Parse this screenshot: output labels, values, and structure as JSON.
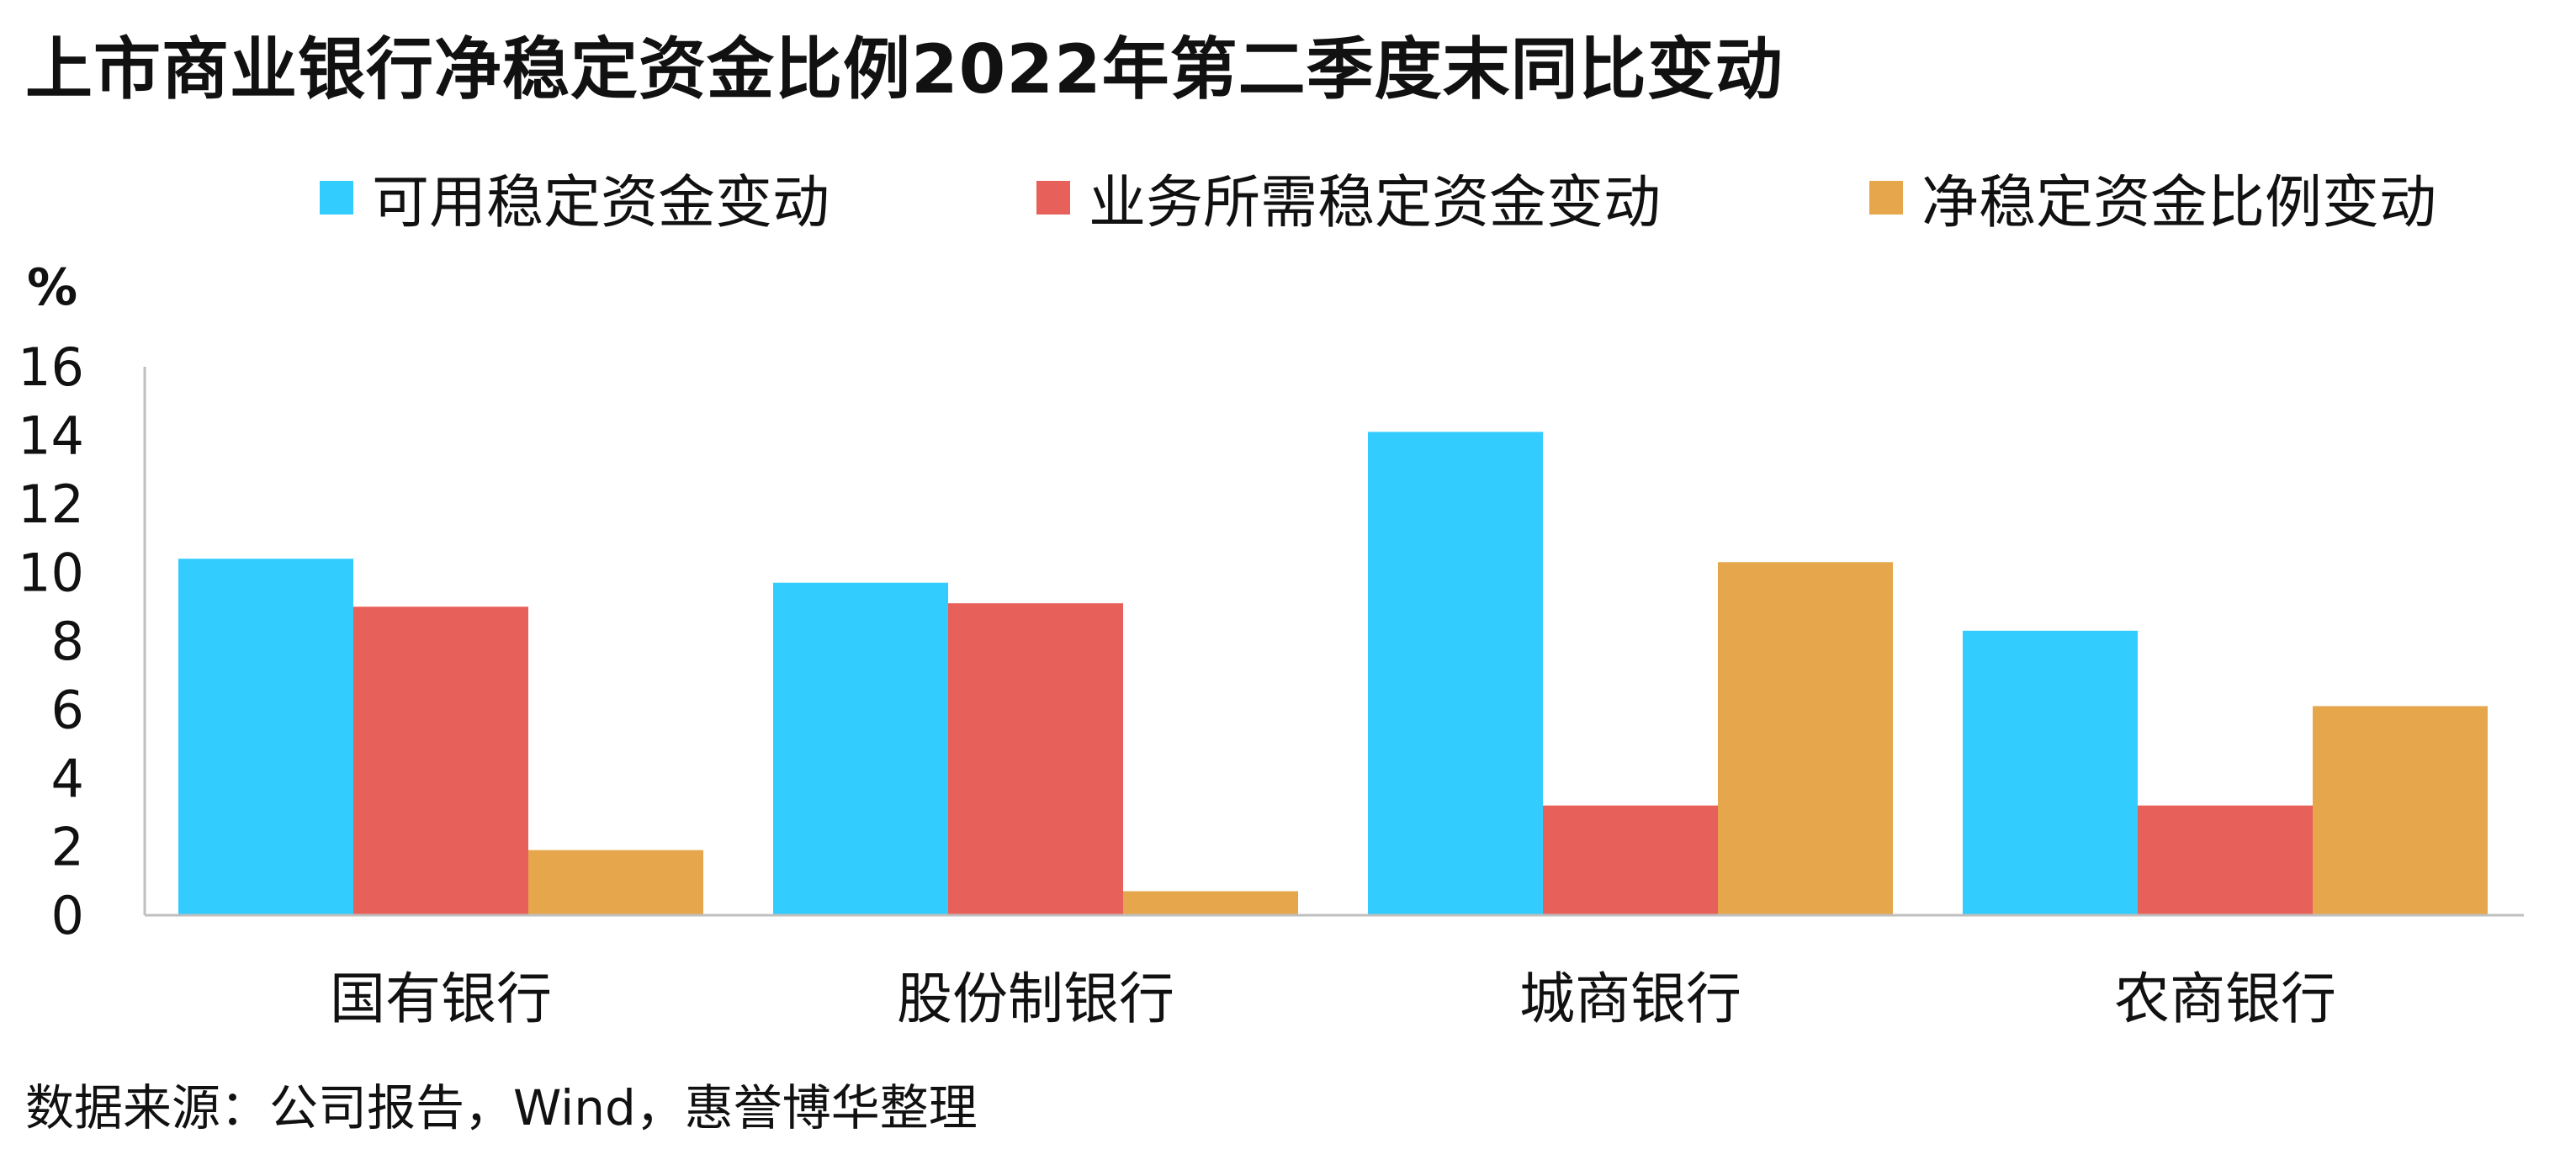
{
  "chart_data": {
    "type": "bar",
    "title": "上市商业银行净稳定资金比例2022年第二季度末同比变动",
    "ylabel": "%",
    "xlabel": "",
    "ylim": [
      0,
      16
    ],
    "yticks": [
      0,
      2,
      4,
      6,
      8,
      10,
      12,
      14,
      16
    ],
    "grid": false,
    "legend_position": "top",
    "categories": [
      "国有银行",
      "股份制银行",
      "城商银行",
      "农商银行"
    ],
    "series": [
      {
        "name": "可用稳定资金变动",
        "color": "#33CCFF",
        "values": [
          10.4,
          9.7,
          14.1,
          8.3
        ]
      },
      {
        "name": "业务所需稳定资金变动",
        "color": "#E8605A",
        "values": [
          9.0,
          9.1,
          3.2,
          3.2
        ]
      },
      {
        "name": "净稳定资金比例变动",
        "color": "#E6A64C",
        "values": [
          1.9,
          0.7,
          10.3,
          6.1
        ]
      }
    ],
    "source": "数据来源：公司报告，Wind，惠誉博华整理"
  }
}
